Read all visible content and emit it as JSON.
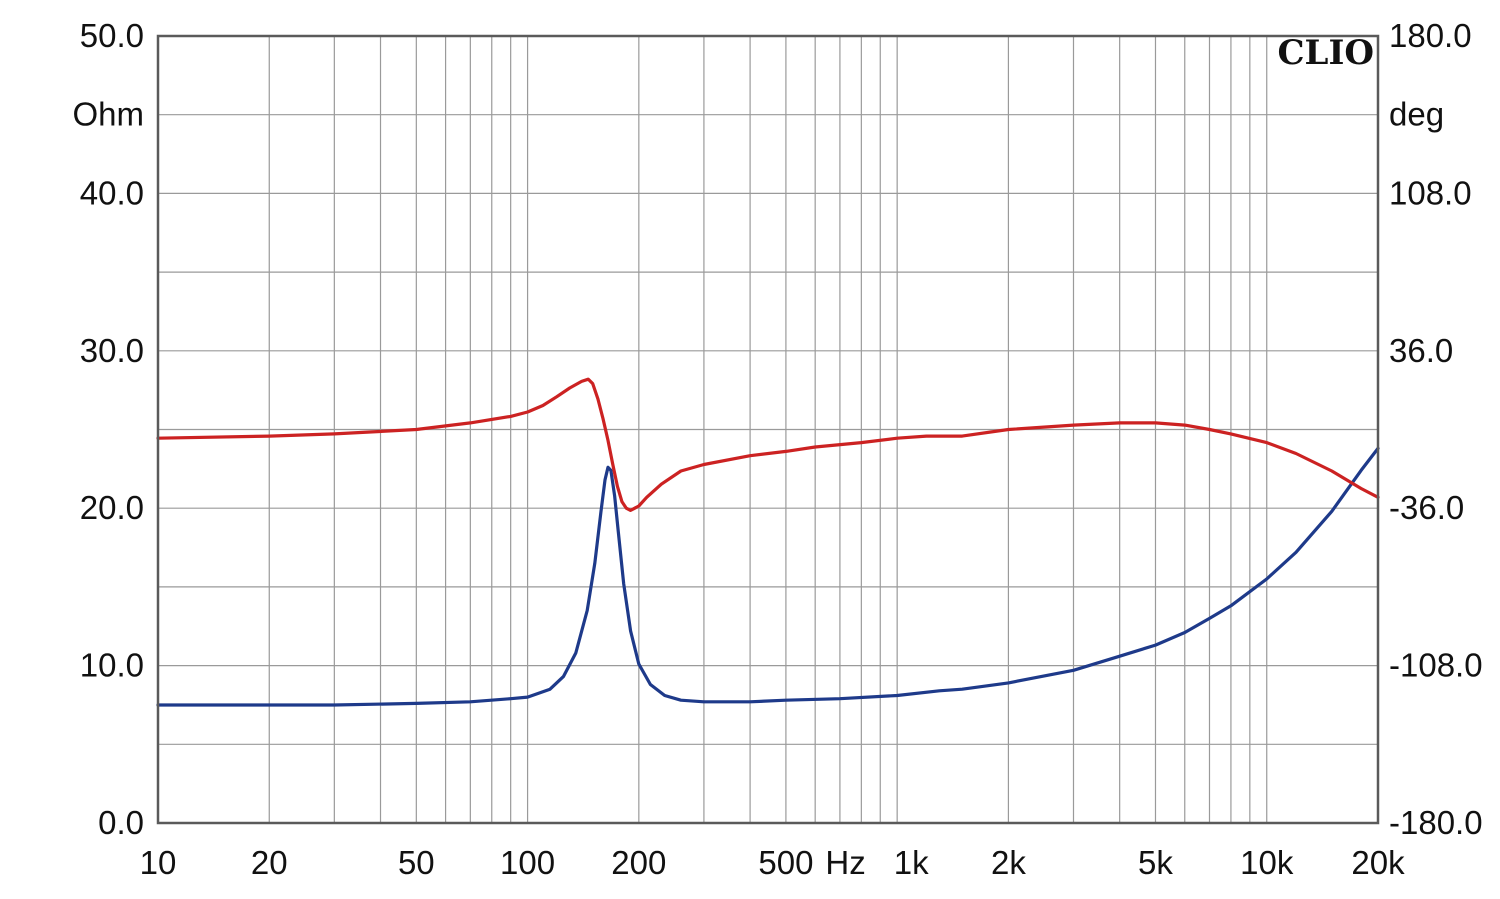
{
  "chart_data": {
    "type": "line",
    "logo": "CLIO",
    "x_scale": "log",
    "xlim": [
      10,
      20000
    ],
    "x_ticks": [
      {
        "value": 10,
        "label": "10"
      },
      {
        "value": 20,
        "label": "20"
      },
      {
        "value": 50,
        "label": "50"
      },
      {
        "value": 100,
        "label": "100"
      },
      {
        "value": 200,
        "label": "200"
      },
      {
        "value": 500,
        "label": "500"
      },
      {
        "value": 1000,
        "label": "1k"
      },
      {
        "value": 2000,
        "label": "2k"
      },
      {
        "value": 5000,
        "label": "5k"
      },
      {
        "value": 10000,
        "label": "10k"
      },
      {
        "value": 20000,
        "label": "20k"
      }
    ],
    "x_unit_label": "Hz",
    "y_left": {
      "unit": "Ohm",
      "ylim": [
        0,
        50
      ],
      "ticks": [
        {
          "value": 0,
          "label": "0.0"
        },
        {
          "value": 10,
          "label": "10.0"
        },
        {
          "value": 20,
          "label": "20.0"
        },
        {
          "value": 30,
          "label": "30.0"
        },
        {
          "value": 40,
          "label": "40.0"
        },
        {
          "value": 50,
          "label": "50.0"
        }
      ]
    },
    "y_right": {
      "unit": "deg",
      "ylim": [
        -180,
        180
      ],
      "ticks": [
        {
          "value": -180,
          "label": "-180.0"
        },
        {
          "value": -108,
          "label": "-108.0"
        },
        {
          "value": -36,
          "label": "-36.0"
        },
        {
          "value": 36,
          "label": "36.0"
        },
        {
          "value": 108,
          "label": "108.0"
        },
        {
          "value": 180,
          "label": "180.0"
        }
      ]
    },
    "grid": true,
    "series": [
      {
        "name": "",
        "axis": "left",
        "color": "#1e3a8a",
        "points": [
          [
            10,
            7.5
          ],
          [
            20,
            7.5
          ],
          [
            30,
            7.5
          ],
          [
            50,
            7.6
          ],
          [
            70,
            7.7
          ],
          [
            90,
            7.9
          ],
          [
            100,
            8.0
          ],
          [
            115,
            8.5
          ],
          [
            125,
            9.3
          ],
          [
            135,
            10.8
          ],
          [
            145,
            13.5
          ],
          [
            152,
            16.5
          ],
          [
            158,
            19.8
          ],
          [
            162,
            21.8
          ],
          [
            165,
            22.6
          ],
          [
            168,
            22.4
          ],
          [
            172,
            20.8
          ],
          [
            176,
            18.5
          ],
          [
            182,
            15.2
          ],
          [
            190,
            12.2
          ],
          [
            200,
            10.1
          ],
          [
            215,
            8.8
          ],
          [
            235,
            8.1
          ],
          [
            260,
            7.8
          ],
          [
            300,
            7.7
          ],
          [
            400,
            7.7
          ],
          [
            500,
            7.8
          ],
          [
            700,
            7.9
          ],
          [
            1000,
            8.1
          ],
          [
            1300,
            8.4
          ],
          [
            1500,
            8.5
          ],
          [
            2000,
            8.9
          ],
          [
            3000,
            9.7
          ],
          [
            4000,
            10.6
          ],
          [
            5000,
            11.3
          ],
          [
            6000,
            12.1
          ],
          [
            7000,
            13.0
          ],
          [
            8000,
            13.8
          ],
          [
            10000,
            15.5
          ],
          [
            12000,
            17.2
          ],
          [
            15000,
            19.8
          ],
          [
            18000,
            22.4
          ],
          [
            20000,
            23.8
          ]
        ]
      },
      {
        "name": "",
        "axis": "right",
        "color": "#cc2222",
        "points": [
          [
            10,
            -4
          ],
          [
            20,
            -3
          ],
          [
            30,
            -2
          ],
          [
            50,
            0
          ],
          [
            70,
            3
          ],
          [
            90,
            6
          ],
          [
            100,
            8
          ],
          [
            110,
            11
          ],
          [
            120,
            15
          ],
          [
            130,
            19
          ],
          [
            140,
            22
          ],
          [
            146,
            23
          ],
          [
            150,
            21
          ],
          [
            155,
            14
          ],
          [
            160,
            5
          ],
          [
            165,
            -5
          ],
          [
            170,
            -16
          ],
          [
            175,
            -26
          ],
          [
            180,
            -33
          ],
          [
            185,
            -36
          ],
          [
            190,
            -37
          ],
          [
            200,
            -35
          ],
          [
            210,
            -31
          ],
          [
            230,
            -25
          ],
          [
            260,
            -19
          ],
          [
            300,
            -16
          ],
          [
            400,
            -12
          ],
          [
            500,
            -10
          ],
          [
            600,
            -8
          ],
          [
            800,
            -6
          ],
          [
            1000,
            -4
          ],
          [
            1200,
            -3
          ],
          [
            1500,
            -3
          ],
          [
            2000,
            0
          ],
          [
            3000,
            2
          ],
          [
            4000,
            3
          ],
          [
            5000,
            3
          ],
          [
            6000,
            2
          ],
          [
            7000,
            0
          ],
          [
            8000,
            -2
          ],
          [
            10000,
            -6
          ],
          [
            12000,
            -11
          ],
          [
            15000,
            -19
          ],
          [
            18000,
            -27
          ],
          [
            20000,
            -31
          ]
        ]
      }
    ]
  }
}
